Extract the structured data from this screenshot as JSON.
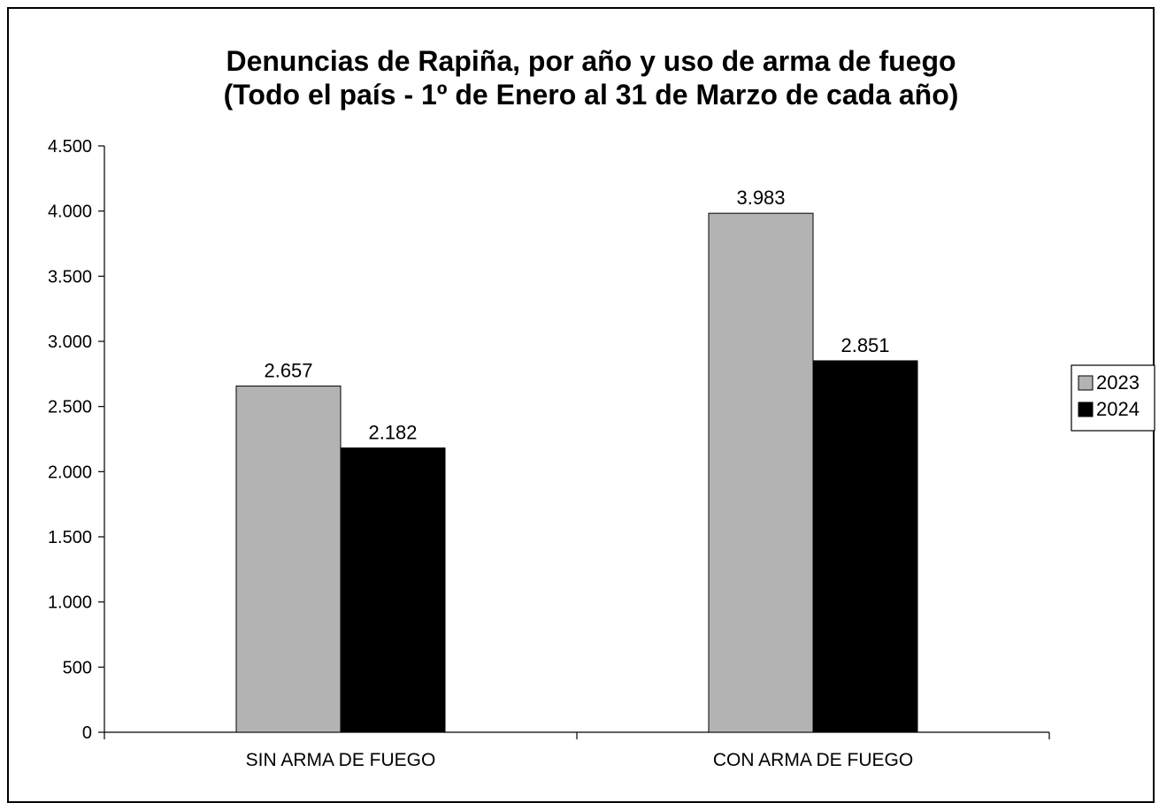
{
  "chart_data": {
    "type": "bar",
    "title_lines": [
      "Denuncias de Rapiña, por año y uso de arma de fuego",
      "(Todo el país - 1º de Enero al 31 de Marzo de cada año)"
    ],
    "categories": [
      "SIN ARMA DE FUEGO",
      "CON ARMA DE FUEGO"
    ],
    "series": [
      {
        "name": "2023",
        "values": [
          2657,
          3983
        ],
        "labels": [
          "2.657",
          "3.983"
        ],
        "color": "#b3b3b3"
      },
      {
        "name": "2024",
        "values": [
          2182,
          2851
        ],
        "labels": [
          "2.182",
          "2.851"
        ],
        "color": "#000000"
      }
    ],
    "yticks": [
      0,
      500,
      1000,
      1500,
      2000,
      2500,
      3000,
      3500,
      4000,
      4500
    ],
    "ytick_labels": [
      "0",
      "500",
      "1.000",
      "1.500",
      "2.000",
      "2.500",
      "3.000",
      "3.500",
      "4.000",
      "4.500"
    ],
    "ylim": [
      0,
      4500
    ],
    "xlabel": "",
    "ylabel": "",
    "grid": false,
    "legend_position": "right"
  }
}
